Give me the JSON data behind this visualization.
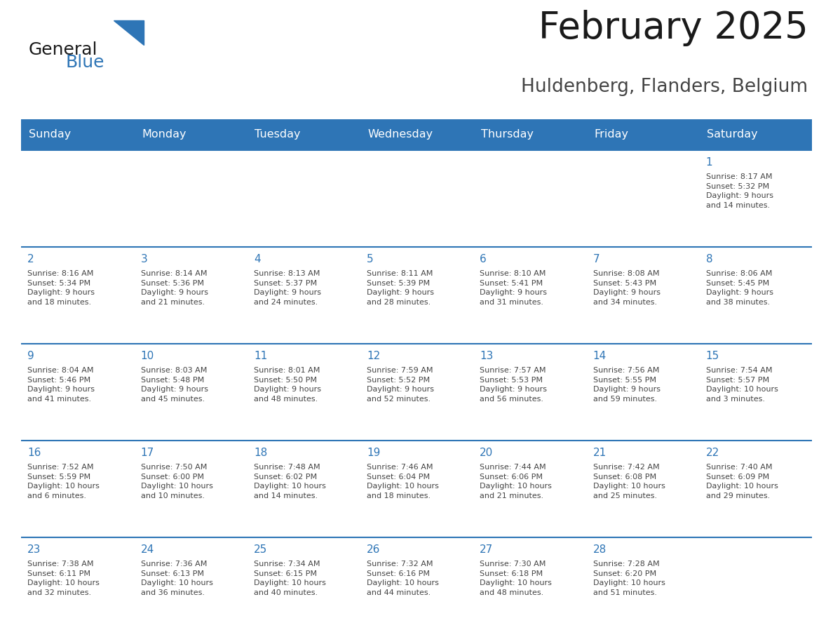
{
  "title": "February 2025",
  "subtitle": "Huldenberg, Flanders, Belgium",
  "days_of_week": [
    "Sunday",
    "Monday",
    "Tuesday",
    "Wednesday",
    "Thursday",
    "Friday",
    "Saturday"
  ],
  "header_bg": "#2E75B6",
  "header_text_color": "#FFFFFF",
  "cell_bg": "#FFFFFF",
  "cell_bg_last": "#F5F5F5",
  "line_color": "#2E75B6",
  "title_color": "#1a1a1a",
  "subtitle_color": "#444444",
  "day_number_color": "#2E75B6",
  "cell_text_color": "#444444",
  "logo_general_color": "#1a1a1a",
  "logo_blue_color": "#2E75B6",
  "weeks": [
    [
      {
        "day": null,
        "info": null
      },
      {
        "day": null,
        "info": null
      },
      {
        "day": null,
        "info": null
      },
      {
        "day": null,
        "info": null
      },
      {
        "day": null,
        "info": null
      },
      {
        "day": null,
        "info": null
      },
      {
        "day": 1,
        "info": "Sunrise: 8:17 AM\nSunset: 5:32 PM\nDaylight: 9 hours\nand 14 minutes."
      }
    ],
    [
      {
        "day": 2,
        "info": "Sunrise: 8:16 AM\nSunset: 5:34 PM\nDaylight: 9 hours\nand 18 minutes."
      },
      {
        "day": 3,
        "info": "Sunrise: 8:14 AM\nSunset: 5:36 PM\nDaylight: 9 hours\nand 21 minutes."
      },
      {
        "day": 4,
        "info": "Sunrise: 8:13 AM\nSunset: 5:37 PM\nDaylight: 9 hours\nand 24 minutes."
      },
      {
        "day": 5,
        "info": "Sunrise: 8:11 AM\nSunset: 5:39 PM\nDaylight: 9 hours\nand 28 minutes."
      },
      {
        "day": 6,
        "info": "Sunrise: 8:10 AM\nSunset: 5:41 PM\nDaylight: 9 hours\nand 31 minutes."
      },
      {
        "day": 7,
        "info": "Sunrise: 8:08 AM\nSunset: 5:43 PM\nDaylight: 9 hours\nand 34 minutes."
      },
      {
        "day": 8,
        "info": "Sunrise: 8:06 AM\nSunset: 5:45 PM\nDaylight: 9 hours\nand 38 minutes."
      }
    ],
    [
      {
        "day": 9,
        "info": "Sunrise: 8:04 AM\nSunset: 5:46 PM\nDaylight: 9 hours\nand 41 minutes."
      },
      {
        "day": 10,
        "info": "Sunrise: 8:03 AM\nSunset: 5:48 PM\nDaylight: 9 hours\nand 45 minutes."
      },
      {
        "day": 11,
        "info": "Sunrise: 8:01 AM\nSunset: 5:50 PM\nDaylight: 9 hours\nand 48 minutes."
      },
      {
        "day": 12,
        "info": "Sunrise: 7:59 AM\nSunset: 5:52 PM\nDaylight: 9 hours\nand 52 minutes."
      },
      {
        "day": 13,
        "info": "Sunrise: 7:57 AM\nSunset: 5:53 PM\nDaylight: 9 hours\nand 56 minutes."
      },
      {
        "day": 14,
        "info": "Sunrise: 7:56 AM\nSunset: 5:55 PM\nDaylight: 9 hours\nand 59 minutes."
      },
      {
        "day": 15,
        "info": "Sunrise: 7:54 AM\nSunset: 5:57 PM\nDaylight: 10 hours\nand 3 minutes."
      }
    ],
    [
      {
        "day": 16,
        "info": "Sunrise: 7:52 AM\nSunset: 5:59 PM\nDaylight: 10 hours\nand 6 minutes."
      },
      {
        "day": 17,
        "info": "Sunrise: 7:50 AM\nSunset: 6:00 PM\nDaylight: 10 hours\nand 10 minutes."
      },
      {
        "day": 18,
        "info": "Sunrise: 7:48 AM\nSunset: 6:02 PM\nDaylight: 10 hours\nand 14 minutes."
      },
      {
        "day": 19,
        "info": "Sunrise: 7:46 AM\nSunset: 6:04 PM\nDaylight: 10 hours\nand 18 minutes."
      },
      {
        "day": 20,
        "info": "Sunrise: 7:44 AM\nSunset: 6:06 PM\nDaylight: 10 hours\nand 21 minutes."
      },
      {
        "day": 21,
        "info": "Sunrise: 7:42 AM\nSunset: 6:08 PM\nDaylight: 10 hours\nand 25 minutes."
      },
      {
        "day": 22,
        "info": "Sunrise: 7:40 AM\nSunset: 6:09 PM\nDaylight: 10 hours\nand 29 minutes."
      }
    ],
    [
      {
        "day": 23,
        "info": "Sunrise: 7:38 AM\nSunset: 6:11 PM\nDaylight: 10 hours\nand 32 minutes."
      },
      {
        "day": 24,
        "info": "Sunrise: 7:36 AM\nSunset: 6:13 PM\nDaylight: 10 hours\nand 36 minutes."
      },
      {
        "day": 25,
        "info": "Sunrise: 7:34 AM\nSunset: 6:15 PM\nDaylight: 10 hours\nand 40 minutes."
      },
      {
        "day": 26,
        "info": "Sunrise: 7:32 AM\nSunset: 6:16 PM\nDaylight: 10 hours\nand 44 minutes."
      },
      {
        "day": 27,
        "info": "Sunrise: 7:30 AM\nSunset: 6:18 PM\nDaylight: 10 hours\nand 48 minutes."
      },
      {
        "day": 28,
        "info": "Sunrise: 7:28 AM\nSunset: 6:20 PM\nDaylight: 10 hours\nand 51 minutes."
      },
      {
        "day": null,
        "info": null
      }
    ]
  ]
}
